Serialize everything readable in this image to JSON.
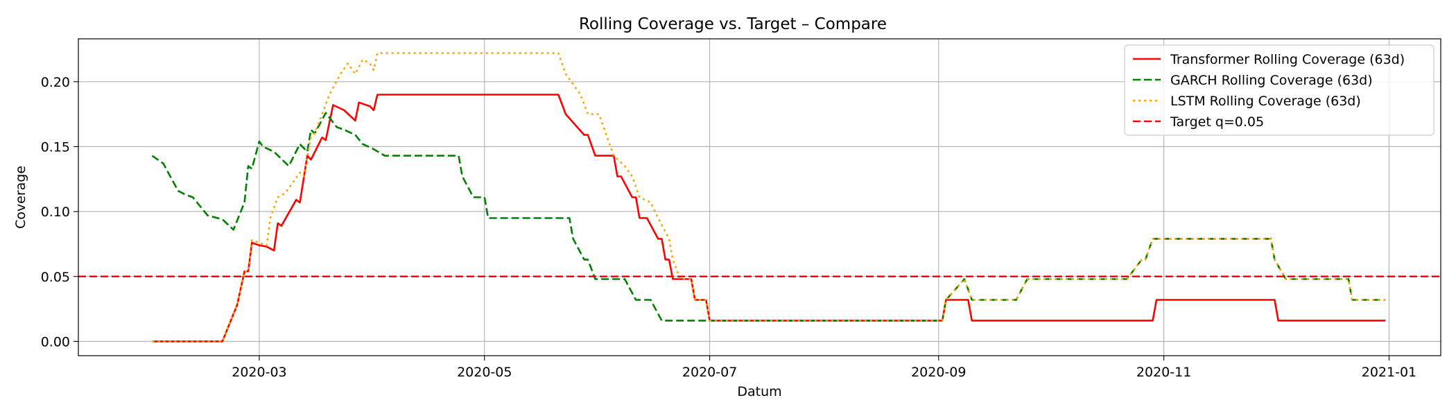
{
  "chart_data": {
    "type": "line",
    "title": "Rolling Coverage vs. Target – Compare",
    "xlabel": "Datum",
    "ylabel": "Coverage",
    "xlim": [
      "2020-01-12",
      "2021-01-15"
    ],
    "ylim": [
      -0.011,
      0.233
    ],
    "grid": true,
    "legend_position": "top-right",
    "x_ticks": [
      "2020-03-01",
      "2020-05-01",
      "2020-07-01",
      "2020-09-01",
      "2020-11-01",
      "2021-01-01"
    ],
    "x_tick_labels": [
      "2020-03",
      "2020-05",
      "2020-07",
      "2020-09",
      "2020-11",
      "2021-01"
    ],
    "y_ticks": [
      0.0,
      0.05,
      0.1,
      0.15,
      0.2
    ],
    "y_tick_labels": [
      "0.00",
      "0.05",
      "0.10",
      "0.15",
      "0.20"
    ],
    "target": {
      "name": "Target q=0.05",
      "value": 0.05,
      "color": "#ff0000",
      "style": "dashed"
    },
    "series": [
      {
        "name": "Transformer Rolling Coverage (63d)",
        "color": "#ff0000",
        "style": "solid",
        "points": [
          [
            "2020-02-01",
            0.0
          ],
          [
            "2020-02-20",
            0.0
          ],
          [
            "2020-02-24",
            0.028
          ],
          [
            "2020-02-26",
            0.054
          ],
          [
            "2020-02-27",
            0.054
          ],
          [
            "2020-02-28",
            0.076
          ],
          [
            "2020-03-01",
            0.074
          ],
          [
            "2020-03-03",
            0.073
          ],
          [
            "2020-03-05",
            0.07
          ],
          [
            "2020-03-06",
            0.091
          ],
          [
            "2020-03-07",
            0.089
          ],
          [
            "2020-03-11",
            0.109
          ],
          [
            "2020-03-12",
            0.107
          ],
          [
            "2020-03-14",
            0.143
          ],
          [
            "2020-03-15",
            0.14
          ],
          [
            "2020-03-18",
            0.157
          ],
          [
            "2020-03-19",
            0.155
          ],
          [
            "2020-03-21",
            0.182
          ],
          [
            "2020-03-24",
            0.178
          ],
          [
            "2020-03-27",
            0.17
          ],
          [
            "2020-03-28",
            0.184
          ],
          [
            "2020-03-31",
            0.181
          ],
          [
            "2020-04-01",
            0.178
          ],
          [
            "2020-04-02",
            0.19
          ],
          [
            "2020-05-21",
            0.19
          ],
          [
            "2020-05-23",
            0.175
          ],
          [
            "2020-05-28",
            0.159
          ],
          [
            "2020-05-29",
            0.159
          ],
          [
            "2020-05-31",
            0.143
          ],
          [
            "2020-06-05",
            0.143
          ],
          [
            "2020-06-06",
            0.127
          ],
          [
            "2020-06-07",
            0.127
          ],
          [
            "2020-06-10",
            0.111
          ],
          [
            "2020-06-11",
            0.111
          ],
          [
            "2020-06-12",
            0.095
          ],
          [
            "2020-06-14",
            0.095
          ],
          [
            "2020-06-17",
            0.079
          ],
          [
            "2020-06-18",
            0.079
          ],
          [
            "2020-06-19",
            0.063
          ],
          [
            "2020-06-20",
            0.063
          ],
          [
            "2020-06-21",
            0.048
          ],
          [
            "2020-06-26",
            0.048
          ],
          [
            "2020-06-27",
            0.032
          ],
          [
            "2020-06-30",
            0.032
          ],
          [
            "2020-07-01",
            0.016
          ],
          [
            "2020-09-02",
            0.016
          ],
          [
            "2020-09-03",
            0.032
          ],
          [
            "2020-09-09",
            0.032
          ],
          [
            "2020-09-10",
            0.016
          ],
          [
            "2020-10-29",
            0.016
          ],
          [
            "2020-10-30",
            0.032
          ],
          [
            "2020-12-01",
            0.032
          ],
          [
            "2020-12-02",
            0.016
          ],
          [
            "2020-12-31",
            0.016
          ]
        ]
      },
      {
        "name": "GARCH Rolling Coverage (63d)",
        "color": "#008000",
        "style": "dashed",
        "points": [
          [
            "2020-02-01",
            0.143
          ],
          [
            "2020-02-04",
            0.137
          ],
          [
            "2020-02-08",
            0.116
          ],
          [
            "2020-02-10",
            0.113
          ],
          [
            "2020-02-12",
            0.111
          ],
          [
            "2020-02-16",
            0.097
          ],
          [
            "2020-02-20",
            0.094
          ],
          [
            "2020-02-23",
            0.086
          ],
          [
            "2020-02-26",
            0.107
          ],
          [
            "2020-02-27",
            0.135
          ],
          [
            "2020-02-28",
            0.133
          ],
          [
            "2020-03-01",
            0.154
          ],
          [
            "2020-03-02",
            0.15
          ],
          [
            "2020-03-05",
            0.146
          ],
          [
            "2020-03-09",
            0.135
          ],
          [
            "2020-03-12",
            0.152
          ],
          [
            "2020-03-14",
            0.146
          ],
          [
            "2020-03-15",
            0.163
          ],
          [
            "2020-03-16",
            0.16
          ],
          [
            "2020-03-19",
            0.176
          ],
          [
            "2020-03-22",
            0.165
          ],
          [
            "2020-03-24",
            0.163
          ],
          [
            "2020-03-27",
            0.159
          ],
          [
            "2020-03-29",
            0.152
          ],
          [
            "2020-04-01",
            0.148
          ],
          [
            "2020-04-04",
            0.143
          ],
          [
            "2020-04-24",
            0.143
          ],
          [
            "2020-04-25",
            0.127
          ],
          [
            "2020-04-28",
            0.111
          ],
          [
            "2020-05-01",
            0.111
          ],
          [
            "2020-05-02",
            0.095
          ],
          [
            "2020-05-24",
            0.095
          ],
          [
            "2020-05-25",
            0.079
          ],
          [
            "2020-05-28",
            0.063
          ],
          [
            "2020-05-29",
            0.063
          ],
          [
            "2020-05-31",
            0.048
          ],
          [
            "2020-06-08",
            0.048
          ],
          [
            "2020-06-11",
            0.032
          ],
          [
            "2020-06-15",
            0.032
          ],
          [
            "2020-06-18",
            0.016
          ],
          [
            "2020-09-02",
            0.016
          ],
          [
            "2020-09-03",
            0.032
          ],
          [
            "2020-09-08",
            0.048
          ],
          [
            "2020-09-10",
            0.032
          ],
          [
            "2020-09-22",
            0.032
          ],
          [
            "2020-09-25",
            0.048
          ],
          [
            "2020-10-22",
            0.048
          ],
          [
            "2020-10-26",
            0.063
          ],
          [
            "2020-10-27",
            0.063
          ],
          [
            "2020-10-29",
            0.079
          ],
          [
            "2020-11-30",
            0.079
          ],
          [
            "2020-12-01",
            0.063
          ],
          [
            "2020-12-04",
            0.048
          ],
          [
            "2020-12-21",
            0.048
          ],
          [
            "2020-12-22",
            0.032
          ],
          [
            "2020-12-31",
            0.032
          ]
        ]
      },
      {
        "name": "LSTM Rolling Coverage (63d)",
        "color": "#ffa500",
        "style": "dotted",
        "points": [
          [
            "2020-02-01",
            0.0
          ],
          [
            "2020-02-20",
            0.0
          ],
          [
            "2020-02-24",
            0.028
          ],
          [
            "2020-02-26",
            0.054
          ],
          [
            "2020-02-27",
            0.054
          ],
          [
            "2020-02-28",
            0.078
          ],
          [
            "2020-03-01",
            0.076
          ],
          [
            "2020-03-03",
            0.074
          ],
          [
            "2020-03-04",
            0.095
          ],
          [
            "2020-03-06",
            0.111
          ],
          [
            "2020-03-08",
            0.114
          ],
          [
            "2020-03-12",
            0.13
          ],
          [
            "2020-03-13",
            0.127
          ],
          [
            "2020-03-15",
            0.157
          ],
          [
            "2020-03-16",
            0.16
          ],
          [
            "2020-03-20",
            0.19
          ],
          [
            "2020-03-23",
            0.206
          ],
          [
            "2020-03-25",
            0.214
          ],
          [
            "2020-03-27",
            0.206
          ],
          [
            "2020-03-29",
            0.217
          ],
          [
            "2020-03-31",
            0.214
          ],
          [
            "2020-04-01",
            0.209
          ],
          [
            "2020-04-02",
            0.222
          ],
          [
            "2020-05-21",
            0.222
          ],
          [
            "2020-05-23",
            0.206
          ],
          [
            "2020-05-27",
            0.19
          ],
          [
            "2020-05-29",
            0.175
          ],
          [
            "2020-06-01",
            0.175
          ],
          [
            "2020-06-03",
            0.159
          ],
          [
            "2020-06-05",
            0.143
          ],
          [
            "2020-06-08",
            0.135
          ],
          [
            "2020-06-10",
            0.127
          ],
          [
            "2020-06-12",
            0.111
          ],
          [
            "2020-06-15",
            0.107
          ],
          [
            "2020-06-17",
            0.095
          ],
          [
            "2020-06-20",
            0.079
          ],
          [
            "2020-06-21",
            0.063
          ],
          [
            "2020-06-23",
            0.048
          ],
          [
            "2020-06-26",
            0.048
          ],
          [
            "2020-06-27",
            0.032
          ],
          [
            "2020-06-30",
            0.032
          ],
          [
            "2020-07-01",
            0.016
          ],
          [
            "2020-09-02",
            0.016
          ],
          [
            "2020-09-03",
            0.032
          ],
          [
            "2020-09-08",
            0.048
          ],
          [
            "2020-09-10",
            0.032
          ],
          [
            "2020-09-22",
            0.032
          ],
          [
            "2020-09-25",
            0.048
          ],
          [
            "2020-10-22",
            0.048
          ],
          [
            "2020-10-26",
            0.063
          ],
          [
            "2020-10-27",
            0.063
          ],
          [
            "2020-10-29",
            0.079
          ],
          [
            "2020-11-30",
            0.079
          ],
          [
            "2020-12-01",
            0.063
          ],
          [
            "2020-12-04",
            0.048
          ],
          [
            "2020-12-21",
            0.048
          ],
          [
            "2020-12-22",
            0.032
          ],
          [
            "2020-12-31",
            0.032
          ]
        ]
      }
    ]
  }
}
